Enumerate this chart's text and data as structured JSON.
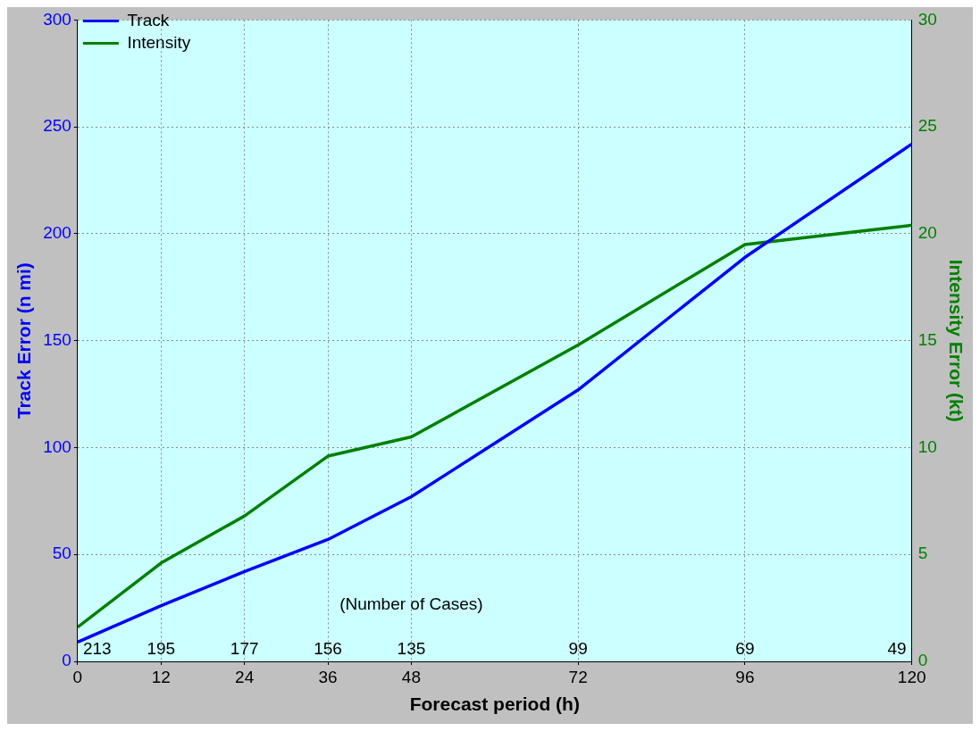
{
  "chart_data": {
    "type": "line",
    "xlabel": "Forecast period (h)",
    "ylabel": "Track Error (n mi)",
    "y2label": "Intensity Error (kt)",
    "x": [
      0,
      12,
      24,
      36,
      48,
      72,
      96,
      120
    ],
    "series": [
      {
        "name": "Track",
        "color": "#0000ff",
        "values": [
          9,
          26,
          42,
          57,
          77,
          127,
          189,
          242
        ]
      },
      {
        "name": "Intensity",
        "color": "#008000",
        "axis": "y2",
        "values": [
          1.6,
          4.6,
          6.8,
          9.6,
          10.5,
          14.8,
          19.5,
          20.4
        ]
      }
    ],
    "xlim": [
      0,
      120
    ],
    "xticks": [
      0,
      12,
      24,
      36,
      48,
      72,
      96,
      120
    ],
    "ylim": [
      0,
      300
    ],
    "yticks": [
      0,
      50,
      100,
      150,
      200,
      250,
      300
    ],
    "y2lim": [
      0,
      30
    ],
    "y2ticks": [
      0,
      5,
      10,
      15,
      20,
      25,
      30
    ],
    "grid": true,
    "legend": "top left",
    "marker": "none",
    "line_style": "solid",
    "annotations": [
      "(Number of Cases)",
      "213",
      "195",
      "177",
      "156",
      "135",
      "99",
      "69",
      "49"
    ]
  }
}
